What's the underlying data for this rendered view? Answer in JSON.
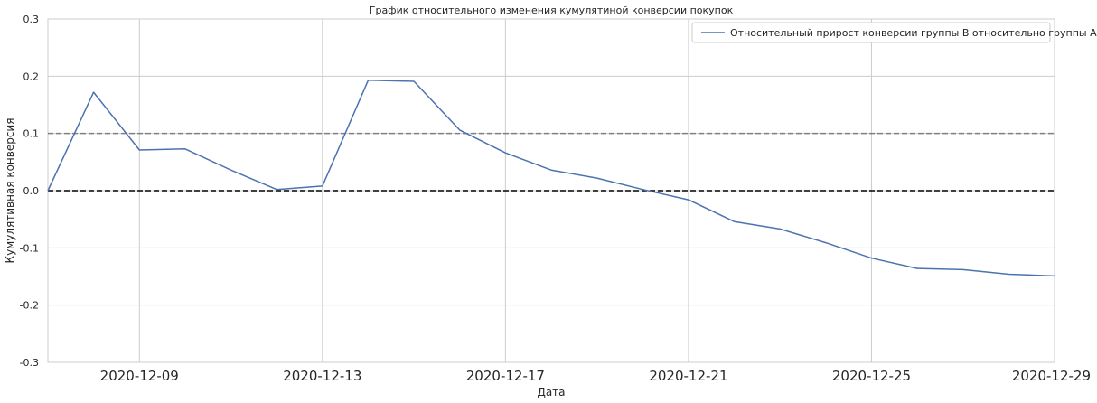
{
  "chart_data": {
    "type": "line",
    "title": "График относительного изменения кумулятиной конверсии покупок",
    "xlabel": "Дата",
    "ylabel": "Кумулятивная конверсия",
    "ylim": [
      -0.3,
      0.3
    ],
    "xlim": [
      "2020-12-07",
      "2020-12-29"
    ],
    "y_ticks": [
      "-0.3",
      "-0.2",
      "-0.1",
      "0.0",
      "0.1",
      "0.2",
      "0.3"
    ],
    "x_ticks": [
      "2020-12-09",
      "2020-12-13",
      "2020-12-17",
      "2020-12-21",
      "2020-12-25",
      "2020-12-29"
    ],
    "grid": true,
    "legend_position": "top-right",
    "series": [
      {
        "name": "Относительный прирост конверсии группы B относительно группы A",
        "color": "#4c72b0",
        "x": [
          "2020-12-07",
          "2020-12-08",
          "2020-12-09",
          "2020-12-10",
          "2020-12-11",
          "2020-12-12",
          "2020-12-13",
          "2020-12-14",
          "2020-12-15",
          "2020-12-16",
          "2020-12-17",
          "2020-12-18",
          "2020-12-19",
          "2020-12-20",
          "2020-12-21",
          "2020-12-22",
          "2020-12-23",
          "2020-12-24",
          "2020-12-25",
          "2020-12-26",
          "2020-12-27",
          "2020-12-28",
          "2020-12-29"
        ],
        "y": [
          0.0,
          0.172,
          0.071,
          0.073,
          0.036,
          0.002,
          0.008,
          0.193,
          0.191,
          0.106,
          0.066,
          0.036,
          0.022,
          0.002,
          -0.016,
          -0.054,
          -0.067,
          -0.091,
          -0.118,
          -0.136,
          -0.138,
          -0.146,
          -0.149
        ]
      }
    ],
    "reference_lines": [
      {
        "y": 0.0,
        "color": "#000000",
        "style": "dashed"
      },
      {
        "y": 0.1,
        "color": "#808080",
        "style": "dashed"
      }
    ]
  }
}
